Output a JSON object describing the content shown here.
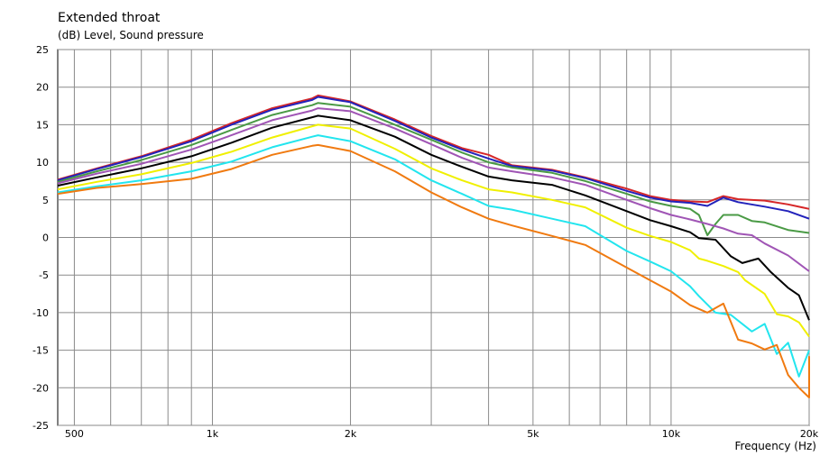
{
  "chart_data": {
    "type": "line",
    "title": "Extended throat",
    "ylabel": "(dB)  Level, Sound pressure",
    "xlabel": "Frequency  (Hz)",
    "x_scale": "log",
    "xlim": [
      460,
      20000
    ],
    "ylim": [
      -25,
      25
    ],
    "yticks": [
      25,
      20,
      15,
      10,
      5,
      0,
      -5,
      -10,
      -15,
      -20,
      -25
    ],
    "yticklabels": [
      "25",
      "20",
      "15",
      "10",
      "5",
      "0",
      "-5",
      "-10",
      "-15",
      "-20",
      "-25"
    ],
    "xticks": [
      500,
      1000,
      2000,
      5000,
      10000,
      20000
    ],
    "xticklabels": [
      "500",
      "1k",
      "2k",
      "5k",
      "10k",
      "20k"
    ],
    "grid": true,
    "legend": "none",
    "series": [
      {
        "color": "#d62728",
        "points": [
          [
            460,
            7.7
          ],
          [
            560,
            9.2
          ],
          [
            700,
            10.8
          ],
          [
            900,
            13.0
          ],
          [
            1100,
            15.2
          ],
          [
            1350,
            17.2
          ],
          [
            1650,
            18.5
          ],
          [
            1700,
            18.9
          ],
          [
            1700,
            18.9
          ],
          [
            2000,
            18.1
          ],
          [
            2500,
            15.7
          ],
          [
            3000,
            13.5
          ],
          [
            3500,
            11.9
          ],
          [
            4000,
            11.0
          ],
          [
            4500,
            9.6
          ],
          [
            5500,
            9.0
          ],
          [
            6500,
            8.0
          ],
          [
            8000,
            6.5
          ],
          [
            9000,
            5.5
          ],
          [
            10000,
            5.0
          ],
          [
            11000,
            4.8
          ],
          [
            12000,
            4.7
          ],
          [
            13000,
            5.5
          ],
          [
            14000,
            5.1
          ],
          [
            16000,
            4.9
          ],
          [
            18000,
            4.4
          ],
          [
            20000,
            3.8
          ]
        ]
      },
      {
        "color": "#2222bb",
        "points": [
          [
            460,
            7.6
          ],
          [
            560,
            9.1
          ],
          [
            700,
            10.7
          ],
          [
            900,
            12.8
          ],
          [
            1100,
            15.0
          ],
          [
            1350,
            17.0
          ],
          [
            1650,
            18.3
          ],
          [
            1700,
            18.7
          ],
          [
            2000,
            18.0
          ],
          [
            2500,
            15.5
          ],
          [
            3000,
            13.3
          ],
          [
            3500,
            11.7
          ],
          [
            4000,
            10.5
          ],
          [
            4500,
            9.5
          ],
          [
            5500,
            8.9
          ],
          [
            6500,
            7.9
          ],
          [
            8000,
            6.2
          ],
          [
            9000,
            5.3
          ],
          [
            10000,
            4.8
          ],
          [
            11000,
            4.6
          ],
          [
            12000,
            4.2
          ],
          [
            13000,
            5.3
          ],
          [
            14000,
            4.7
          ],
          [
            16000,
            4.1
          ],
          [
            18000,
            3.5
          ],
          [
            20000,
            2.5
          ]
        ]
      },
      {
        "color": "#4a9a45",
        "points": [
          [
            460,
            7.4
          ],
          [
            560,
            8.8
          ],
          [
            700,
            10.3
          ],
          [
            900,
            12.3
          ],
          [
            1100,
            14.3
          ],
          [
            1350,
            16.3
          ],
          [
            1650,
            17.6
          ],
          [
            1700,
            17.9
          ],
          [
            2000,
            17.4
          ],
          [
            2500,
            15.0
          ],
          [
            3000,
            13.0
          ],
          [
            3500,
            11.3
          ],
          [
            4000,
            10.0
          ],
          [
            4500,
            9.3
          ],
          [
            5500,
            8.6
          ],
          [
            6500,
            7.5
          ],
          [
            8000,
            5.8
          ],
          [
            9000,
            4.8
          ],
          [
            10000,
            4.2
          ],
          [
            11000,
            3.8
          ],
          [
            11500,
            3.0
          ],
          [
            12000,
            0.3
          ],
          [
            12500,
            1.8
          ],
          [
            13000,
            3.0
          ],
          [
            14000,
            3.0
          ],
          [
            15000,
            2.2
          ],
          [
            16000,
            2.0
          ],
          [
            18000,
            1.0
          ],
          [
            20000,
            0.6
          ]
        ]
      },
      {
        "color": "#a055b5",
        "points": [
          [
            460,
            7.2
          ],
          [
            560,
            8.5
          ],
          [
            700,
            9.8
          ],
          [
            900,
            11.7
          ],
          [
            1100,
            13.6
          ],
          [
            1350,
            15.6
          ],
          [
            1650,
            16.9
          ],
          [
            1700,
            17.2
          ],
          [
            2000,
            16.8
          ],
          [
            2500,
            14.5
          ],
          [
            3000,
            12.4
          ],
          [
            3500,
            10.6
          ],
          [
            4000,
            9.3
          ],
          [
            4500,
            8.8
          ],
          [
            5500,
            8.0
          ],
          [
            6500,
            7.0
          ],
          [
            8000,
            5.0
          ],
          [
            9000,
            3.9
          ],
          [
            10000,
            3.0
          ],
          [
            11000,
            2.4
          ],
          [
            12000,
            1.8
          ],
          [
            13000,
            1.2
          ],
          [
            14000,
            0.5
          ],
          [
            15000,
            0.3
          ],
          [
            16000,
            -0.8
          ],
          [
            18000,
            -2.4
          ],
          [
            20000,
            -4.5
          ]
        ]
      },
      {
        "color": "#000000",
        "points": [
          [
            460,
            6.9
          ],
          [
            560,
            8.0
          ],
          [
            700,
            9.2
          ],
          [
            900,
            10.8
          ],
          [
            1100,
            12.6
          ],
          [
            1350,
            14.6
          ],
          [
            1650,
            16.0
          ],
          [
            1700,
            16.2
          ],
          [
            2000,
            15.6
          ],
          [
            2500,
            13.4
          ],
          [
            3000,
            11.0
          ],
          [
            3500,
            9.4
          ],
          [
            4000,
            8.1
          ],
          [
            4500,
            7.6
          ],
          [
            5500,
            7.0
          ],
          [
            6500,
            5.6
          ],
          [
            8000,
            3.5
          ],
          [
            9000,
            2.3
          ],
          [
            10000,
            1.5
          ],
          [
            11000,
            0.7
          ],
          [
            11500,
            -0.1
          ],
          [
            12500,
            -0.3
          ],
          [
            13500,
            -2.5
          ],
          [
            14300,
            -3.4
          ],
          [
            15500,
            -2.8
          ],
          [
            16500,
            -4.6
          ],
          [
            18000,
            -6.7
          ],
          [
            19000,
            -7.7
          ],
          [
            20000,
            -11.0
          ]
        ]
      },
      {
        "color": "#f0f000",
        "points": [
          [
            460,
            6.4
          ],
          [
            560,
            7.4
          ],
          [
            700,
            8.4
          ],
          [
            900,
            9.9
          ],
          [
            1100,
            11.4
          ],
          [
            1350,
            13.3
          ],
          [
            1650,
            14.8
          ],
          [
            1700,
            15.0
          ],
          [
            2000,
            14.5
          ],
          [
            2500,
            11.8
          ],
          [
            3000,
            9.2
          ],
          [
            3500,
            7.6
          ],
          [
            4000,
            6.4
          ],
          [
            4500,
            6.0
          ],
          [
            5500,
            5.0
          ],
          [
            6500,
            4.0
          ],
          [
            8000,
            1.3
          ],
          [
            9000,
            0.2
          ],
          [
            10000,
            -0.6
          ],
          [
            11000,
            -1.7
          ],
          [
            11500,
            -2.8
          ],
          [
            12000,
            -3.1
          ],
          [
            13000,
            -3.8
          ],
          [
            14000,
            -4.6
          ],
          [
            14500,
            -5.7
          ],
          [
            16000,
            -7.5
          ],
          [
            17000,
            -10.2
          ],
          [
            18000,
            -10.5
          ],
          [
            19000,
            -11.3
          ],
          [
            20000,
            -13.2
          ]
        ]
      },
      {
        "color": "#22e5ee",
        "points": [
          [
            460,
            6.0
          ],
          [
            560,
            6.8
          ],
          [
            700,
            7.6
          ],
          [
            900,
            8.8
          ],
          [
            1100,
            10.1
          ],
          [
            1350,
            12.0
          ],
          [
            1650,
            13.4
          ],
          [
            1700,
            13.6
          ],
          [
            2000,
            12.8
          ],
          [
            2500,
            10.4
          ],
          [
            3000,
            7.6
          ],
          [
            3500,
            5.8
          ],
          [
            4000,
            4.2
          ],
          [
            4500,
            3.7
          ],
          [
            5500,
            2.5
          ],
          [
            6500,
            1.5
          ],
          [
            8000,
            -1.8
          ],
          [
            9000,
            -3.2
          ],
          [
            10000,
            -4.5
          ],
          [
            11000,
            -6.5
          ],
          [
            11500,
            -7.8
          ],
          [
            12500,
            -10.0
          ],
          [
            13500,
            -10.3
          ],
          [
            15000,
            -12.5
          ],
          [
            16000,
            -11.5
          ],
          [
            17000,
            -15.5
          ],
          [
            18000,
            -14.0
          ],
          [
            19000,
            -18.5
          ],
          [
            20000,
            -15.0
          ]
        ]
      },
      {
        "color": "#f07a10",
        "points": [
          [
            460,
            5.8
          ],
          [
            560,
            6.6
          ],
          [
            700,
            7.1
          ],
          [
            900,
            7.8
          ],
          [
            1100,
            9.1
          ],
          [
            1350,
            11.0
          ],
          [
            1650,
            12.2
          ],
          [
            1700,
            12.3
          ],
          [
            2000,
            11.5
          ],
          [
            2500,
            8.8
          ],
          [
            3000,
            6.0
          ],
          [
            3500,
            4.0
          ],
          [
            4000,
            2.5
          ],
          [
            4500,
            1.6
          ],
          [
            5500,
            0.2
          ],
          [
            6500,
            -1.0
          ],
          [
            8000,
            -4.0
          ],
          [
            9000,
            -5.7
          ],
          [
            10000,
            -7.2
          ],
          [
            11000,
            -9.0
          ],
          [
            12000,
            -10.0
          ],
          [
            13000,
            -8.8
          ],
          [
            14000,
            -13.6
          ],
          [
            15000,
            -14.1
          ],
          [
            16000,
            -14.9
          ],
          [
            17000,
            -14.3
          ],
          [
            18000,
            -18.3
          ],
          [
            19000,
            -20.0
          ],
          [
            20000,
            -21.3
          ],
          [
            20000,
            -15.8
          ]
        ]
      }
    ]
  }
}
